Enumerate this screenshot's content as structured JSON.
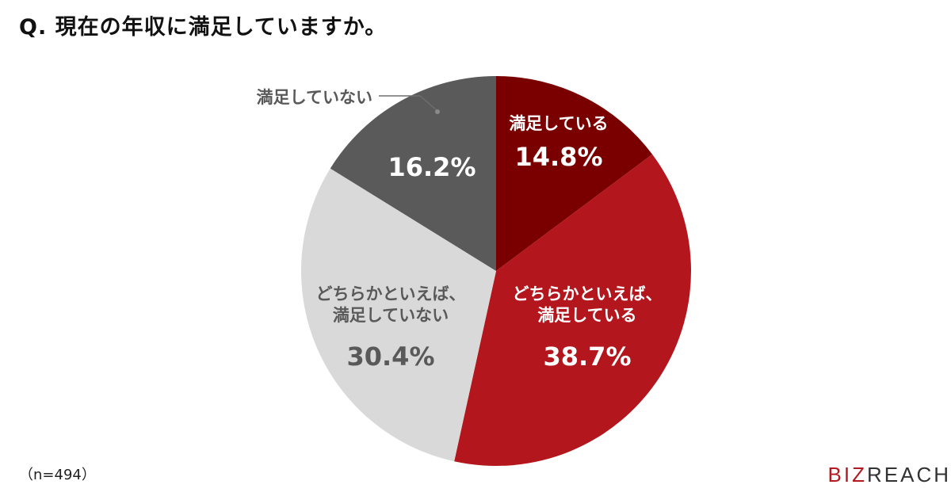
{
  "title": "Q. 現在の年収に満足していますか。",
  "note": "（n=494）",
  "logo": {
    "accent": "BIZ",
    "rest": "REACH"
  },
  "chart_data": {
    "type": "pie",
    "title": "Q. 現在の年収に満足していますか。",
    "start": "12 o'clock",
    "direction": "clockwise",
    "slices": [
      {
        "label_lines": [
          "満足している"
        ],
        "value": 14.8,
        "value_label": "14.8%",
        "color": "#7a0000",
        "text_color": "#ffffff",
        "label_position": "inside"
      },
      {
        "label_lines": [
          "どちらかといえば、",
          "満足している"
        ],
        "value": 38.7,
        "value_label": "38.7%",
        "color": "#b3161c",
        "text_color": "#ffffff",
        "label_position": "inside"
      },
      {
        "label_lines": [
          "どちらかといえば、",
          "満足していない"
        ],
        "value": 30.4,
        "value_label": "30.4%",
        "color": "#d9d9d9",
        "text_color": "#595959",
        "label_position": "inside"
      },
      {
        "label_lines": [
          "満足していない"
        ],
        "value": 16.2,
        "value_label": "16.2%",
        "color": "#5a5a5a",
        "text_color": "#ffffff",
        "label_position": "callout-outside",
        "callout_text_color": "#595959"
      }
    ]
  }
}
